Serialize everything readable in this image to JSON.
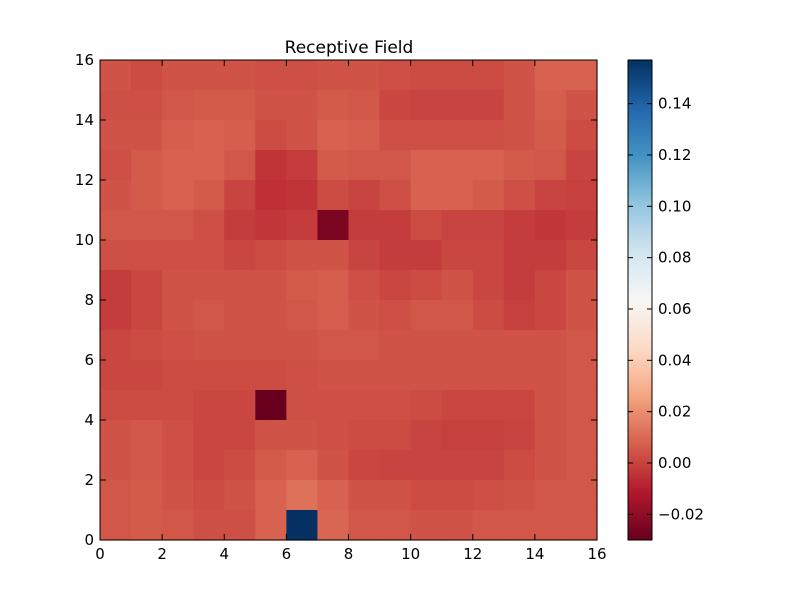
{
  "chart_data": {
    "type": "heatmap",
    "title": "Receptive Field",
    "xlabel": "",
    "ylabel": "",
    "xlim": [
      0,
      16
    ],
    "ylim": [
      0,
      16
    ],
    "x_ticks": [
      "0",
      "2",
      "4",
      "6",
      "8",
      "10",
      "12",
      "14",
      "16"
    ],
    "y_ticks": [
      "0",
      "2",
      "4",
      "6",
      "8",
      "10",
      "12",
      "14",
      "16"
    ],
    "colormap": "RdBu",
    "colorbar": {
      "range": [
        -0.03,
        0.157
      ],
      "tick_values": [
        -0.02,
        0.0,
        0.02,
        0.04,
        0.06,
        0.08,
        0.1,
        0.12,
        0.14
      ],
      "tick_labels": [
        "−0.02",
        "0.00",
        "0.02",
        "0.04",
        "0.06",
        "0.08",
        "0.10",
        "0.12",
        "0.14"
      ],
      "placement": "right"
    },
    "row_order": "top_to_bottom (row 0 = y 15..16, last row = y 0..1)",
    "values": [
      [
        0.004,
        0.002,
        0.004,
        0.004,
        0.004,
        0.003,
        0.003,
        0.004,
        0.004,
        0.003,
        0.002,
        0.002,
        0.002,
        0.004,
        0.008,
        0.008
      ],
      [
        0.003,
        0.003,
        0.005,
        0.006,
        0.006,
        0.004,
        0.004,
        0.006,
        0.005,
        0.001,
        0.0,
        0.0,
        0.0,
        0.004,
        0.007,
        0.004
      ],
      [
        0.004,
        0.004,
        0.007,
        0.008,
        0.007,
        0.002,
        0.004,
        0.008,
        0.007,
        0.003,
        0.003,
        0.003,
        0.003,
        0.004,
        0.006,
        0.002
      ],
      [
        0.003,
        0.006,
        0.008,
        0.008,
        0.005,
        -0.004,
        -0.002,
        0.006,
        0.005,
        0.005,
        0.008,
        0.008,
        0.008,
        0.006,
        0.005,
        0.0
      ],
      [
        0.004,
        0.006,
        0.008,
        0.006,
        0.0,
        -0.005,
        -0.004,
        0.002,
        0.0,
        0.003,
        0.008,
        0.008,
        0.006,
        0.003,
        0.0,
        -0.001
      ],
      [
        0.005,
        0.005,
        0.005,
        0.003,
        -0.002,
        -0.003,
        -0.002,
        -0.025,
        -0.002,
        -0.002,
        0.002,
        0.0,
        0.0,
        -0.002,
        -0.003,
        -0.002
      ],
      [
        0.003,
        0.003,
        0.003,
        0.003,
        0.001,
        0.002,
        0.004,
        0.004,
        0.0,
        -0.002,
        -0.002,
        0.001,
        0.001,
        -0.002,
        -0.002,
        0.001
      ],
      [
        -0.002,
        0.001,
        0.004,
        0.004,
        0.004,
        0.004,
        0.006,
        0.007,
        0.003,
        0.001,
        0.002,
        0.004,
        0.001,
        -0.002,
        0.001,
        0.004
      ],
      [
        -0.002,
        0.001,
        0.004,
        0.005,
        0.004,
        0.004,
        0.005,
        0.007,
        0.004,
        0.003,
        0.005,
        0.005,
        0.002,
        -0.001,
        0.001,
        0.004
      ],
      [
        0.001,
        0.002,
        0.003,
        0.004,
        0.004,
        0.004,
        0.004,
        0.005,
        0.005,
        0.004,
        0.004,
        0.004,
        0.004,
        0.004,
        0.004,
        0.005
      ],
      [
        0.001,
        0.001,
        0.002,
        0.002,
        0.002,
        0.002,
        0.003,
        0.004,
        0.004,
        0.004,
        0.004,
        0.004,
        0.004,
        0.004,
        0.004,
        0.005
      ],
      [
        0.002,
        0.002,
        0.002,
        0.001,
        0.001,
        -0.03,
        0.003,
        0.003,
        0.003,
        0.003,
        0.002,
        0.001,
        0.001,
        0.001,
        0.004,
        0.005
      ],
      [
        0.004,
        0.005,
        0.003,
        0.001,
        0.001,
        0.004,
        0.004,
        0.003,
        0.002,
        0.002,
        0.0,
        -0.001,
        -0.001,
        0.0,
        0.004,
        0.005
      ],
      [
        0.004,
        0.005,
        0.003,
        0.001,
        0.002,
        0.006,
        0.008,
        0.004,
        0.001,
        0.0,
        0.0,
        0.0,
        0.0,
        0.002,
        0.004,
        0.005
      ],
      [
        0.005,
        0.006,
        0.004,
        0.002,
        0.004,
        0.008,
        0.012,
        0.008,
        0.004,
        0.004,
        0.002,
        0.002,
        0.003,
        0.004,
        0.005,
        0.005
      ],
      [
        0.005,
        0.006,
        0.005,
        0.003,
        0.003,
        0.008,
        0.157,
        0.009,
        0.005,
        0.005,
        0.004,
        0.004,
        0.005,
        0.005,
        0.005,
        0.005
      ]
    ]
  }
}
